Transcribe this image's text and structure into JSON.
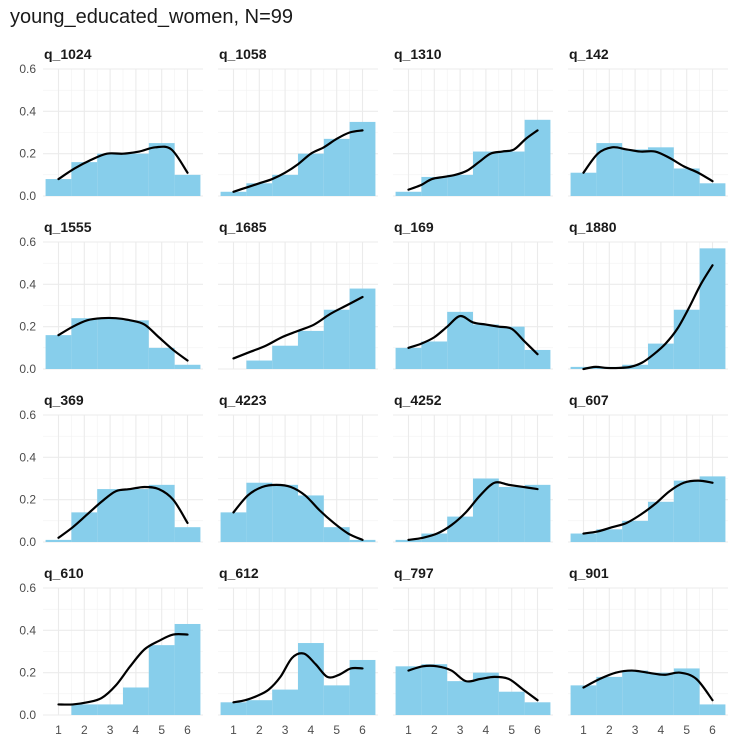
{
  "title": "young_educated_women, N=99",
  "chart_data": {
    "type": "bar",
    "layout": "facets 4x4",
    "x": [
      1,
      2,
      3,
      4,
      5,
      6
    ],
    "xlim": [
      0.4,
      6.6
    ],
    "ylim": [
      0,
      0.6
    ],
    "yticks": [
      0.0,
      0.2,
      0.4,
      0.6
    ],
    "ytick_labels": [
      "0.0",
      "0.2",
      "0.4",
      "0.6"
    ],
    "xtick_labels": [
      "1",
      "2",
      "3",
      "4",
      "5",
      "6"
    ],
    "bar_color": "#87ceeb",
    "line_color": "#000000",
    "grid": true,
    "panels": [
      {
        "name": "q_1024",
        "bars": [
          0.08,
          0.16,
          0.2,
          0.2,
          0.25,
          0.1
        ],
        "density": [
          0.08,
          0.13,
          0.17,
          0.2,
          0.2,
          0.21,
          0.23,
          0.22,
          0.11
        ]
      },
      {
        "name": "q_1058",
        "bars": [
          0.02,
          0.06,
          0.1,
          0.2,
          0.27,
          0.35
        ],
        "density": [
          0.02,
          0.04,
          0.06,
          0.08,
          0.11,
          0.15,
          0.2,
          0.23,
          0.27,
          0.3,
          0.31
        ]
      },
      {
        "name": "q_1310",
        "bars": [
          0.02,
          0.09,
          0.1,
          0.21,
          0.21,
          0.36
        ],
        "density": [
          0.03,
          0.05,
          0.08,
          0.09,
          0.1,
          0.12,
          0.16,
          0.2,
          0.21,
          0.22,
          0.27,
          0.31
        ]
      },
      {
        "name": "q_142",
        "bars": [
          0.11,
          0.25,
          0.22,
          0.23,
          0.13,
          0.06
        ],
        "density": [
          0.11,
          0.2,
          0.23,
          0.22,
          0.21,
          0.21,
          0.18,
          0.14,
          0.11,
          0.07
        ]
      },
      {
        "name": "q_1555",
        "bars": [
          0.16,
          0.24,
          0.24,
          0.23,
          0.1,
          0.02
        ],
        "density": [
          0.16,
          0.2,
          0.23,
          0.24,
          0.24,
          0.23,
          0.21,
          0.15,
          0.09,
          0.04
        ]
      },
      {
        "name": "q_1685",
        "bars": [
          0.0,
          0.04,
          0.11,
          0.18,
          0.28,
          0.38
        ],
        "density": [
          0.05,
          0.08,
          0.11,
          0.15,
          0.18,
          0.21,
          0.26,
          0.3,
          0.34
        ]
      },
      {
        "name": "q_169",
        "bars": [
          0.1,
          0.13,
          0.27,
          0.21,
          0.2,
          0.09
        ],
        "density": [
          0.1,
          0.12,
          0.15,
          0.2,
          0.25,
          0.22,
          0.21,
          0.2,
          0.19,
          0.13,
          0.07
        ]
      },
      {
        "name": "q_1880",
        "bars": [
          0.01,
          0.01,
          0.02,
          0.12,
          0.28,
          0.57
        ],
        "density": [
          0.0,
          0.01,
          0.005,
          0.005,
          0.01,
          0.03,
          0.07,
          0.12,
          0.19,
          0.29,
          0.4,
          0.49
        ]
      },
      {
        "name": "q_369",
        "bars": [
          0.01,
          0.14,
          0.25,
          0.25,
          0.27,
          0.07
        ],
        "density": [
          0.02,
          0.07,
          0.13,
          0.19,
          0.24,
          0.25,
          0.26,
          0.25,
          0.2,
          0.09
        ]
      },
      {
        "name": "q_4223",
        "bars": [
          0.14,
          0.28,
          0.27,
          0.22,
          0.07,
          0.01
        ],
        "density": [
          0.14,
          0.22,
          0.26,
          0.27,
          0.26,
          0.22,
          0.15,
          0.09,
          0.04,
          0.01
        ]
      },
      {
        "name": "q_4252",
        "bars": [
          0.01,
          0.04,
          0.12,
          0.3,
          0.26,
          0.27
        ],
        "density": [
          0.01,
          0.02,
          0.04,
          0.08,
          0.14,
          0.22,
          0.28,
          0.27,
          0.26,
          0.25
        ]
      },
      {
        "name": "q_607",
        "bars": [
          0.04,
          0.06,
          0.1,
          0.19,
          0.29,
          0.31
        ],
        "density": [
          0.04,
          0.05,
          0.07,
          0.09,
          0.13,
          0.18,
          0.24,
          0.28,
          0.29,
          0.28
        ]
      },
      {
        "name": "q_610",
        "bars": [
          0.0,
          0.05,
          0.05,
          0.13,
          0.33,
          0.43
        ],
        "density": [
          0.05,
          0.05,
          0.06,
          0.08,
          0.14,
          0.23,
          0.31,
          0.35,
          0.38,
          0.38
        ]
      },
      {
        "name": "q_612",
        "bars": [
          0.06,
          0.07,
          0.12,
          0.34,
          0.14,
          0.26
        ],
        "density": [
          0.06,
          0.07,
          0.09,
          0.12,
          0.18,
          0.27,
          0.29,
          0.24,
          0.18,
          0.19,
          0.22,
          0.22
        ]
      },
      {
        "name": "q_797",
        "bars": [
          0.23,
          0.24,
          0.16,
          0.2,
          0.11,
          0.06
        ],
        "density": [
          0.21,
          0.23,
          0.23,
          0.21,
          0.16,
          0.17,
          0.18,
          0.17,
          0.12,
          0.07
        ]
      },
      {
        "name": "q_901",
        "bars": [
          0.14,
          0.18,
          0.21,
          0.2,
          0.22,
          0.05
        ],
        "density": [
          0.13,
          0.17,
          0.2,
          0.21,
          0.2,
          0.19,
          0.2,
          0.17,
          0.07
        ]
      }
    ]
  }
}
